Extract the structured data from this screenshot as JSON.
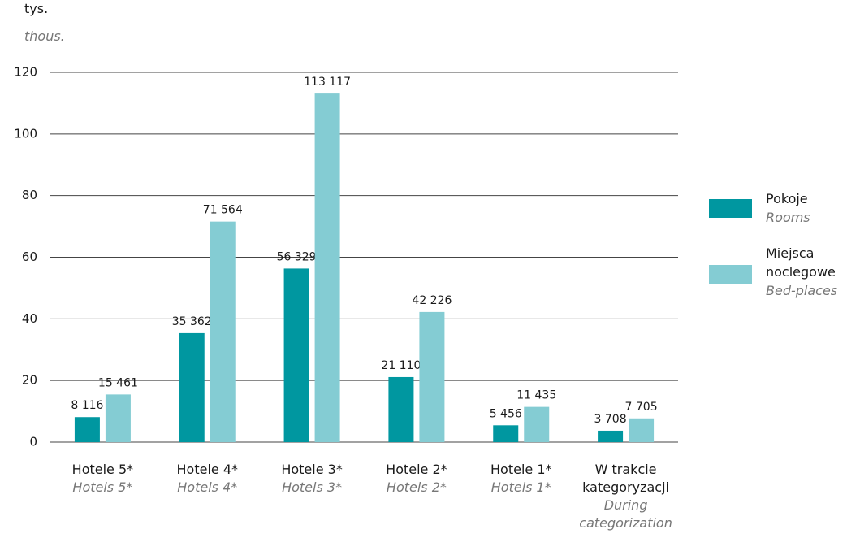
{
  "chart_data": {
    "type": "bar",
    "y_unit": "tys.",
    "y_unit_en": "thous.",
    "categories": [
      "Hotele 5*",
      "Hotele 4*",
      "Hotele 3*",
      "Hotele 2*",
      "Hotele 1*",
      "W trakcie kategoryzacji"
    ],
    "categories_en": [
      "Hotels 5*",
      "Hotels 4*",
      "Hotels 3*",
      "Hotels 2*",
      "Hotels 1*",
      "During categorization"
    ],
    "series": [
      {
        "name": "Pokoje",
        "name_en": "Rooms",
        "color": "#0097a0",
        "values": [
          8.116,
          35.362,
          56.329,
          21.11,
          5.456,
          3.708
        ],
        "value_labels": [
          "8 116",
          "35 362",
          "56 329",
          "21 110",
          "5 456",
          "3 708"
        ]
      },
      {
        "name": "Miejsca noclegowe",
        "name_en": "Bed-places",
        "color": "#84ccd3",
        "values": [
          15.461,
          71.564,
          113.117,
          42.226,
          11.435,
          7.705
        ],
        "value_labels": [
          "15 461",
          "71 564",
          "113 117",
          "42 226",
          "11 435",
          "7 705"
        ]
      }
    ],
    "ylim": [
      0,
      120
    ],
    "yticks": [
      0,
      20,
      40,
      60,
      80,
      100,
      120
    ],
    "grid": true,
    "legend": "right"
  }
}
